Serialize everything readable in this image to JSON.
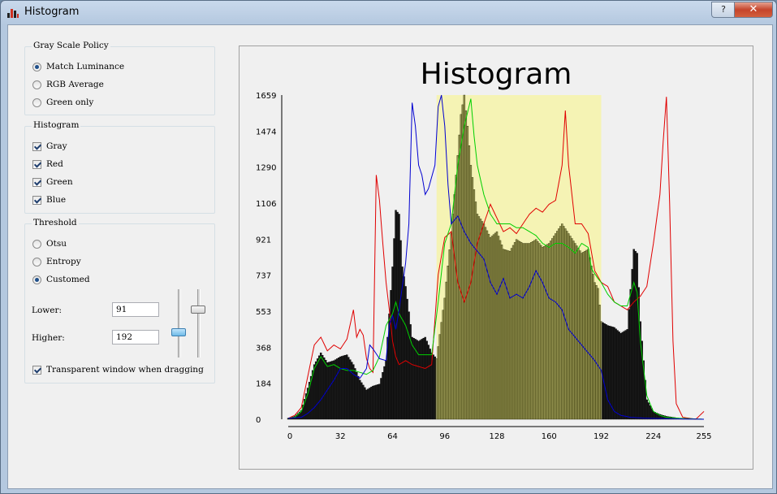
{
  "window": {
    "title": "Histogram",
    "help_label": "?",
    "close_label": "✕",
    "icon": "histogram-app-icon"
  },
  "gray_policy": {
    "title": "Gray Scale Policy",
    "options": [
      {
        "label": "Match Luminance",
        "selected": true
      },
      {
        "label": "RGB Average",
        "selected": false
      },
      {
        "label": "Green only",
        "selected": false
      }
    ]
  },
  "histogram_group": {
    "title": "Histogram",
    "options": [
      {
        "label": "Gray",
        "checked": true
      },
      {
        "label": "Red",
        "checked": true
      },
      {
        "label": "Green",
        "checked": true
      },
      {
        "label": "Blue",
        "checked": true
      }
    ]
  },
  "threshold": {
    "title": "Threshold",
    "options": [
      {
        "label": "Otsu",
        "selected": false
      },
      {
        "label": "Entropy",
        "selected": false
      },
      {
        "label": "Customed",
        "selected": true
      }
    ],
    "lower_label": "Lower:",
    "lower_value": "91",
    "higher_label": "Higher:",
    "higher_value": "192",
    "transparent_label": "Transparent window when dragging",
    "transparent_checked": true
  },
  "colors": {
    "highlight": "#f5f3b4",
    "gray_bars": "#1a1a1a",
    "red": "#e00000",
    "green": "#00d000",
    "blue": "#0000d0"
  },
  "chart_data": {
    "type": "bar",
    "title": "Histogram",
    "xlabel": "",
    "ylabel": "",
    "xlim": [
      0,
      255
    ],
    "ylim": [
      0,
      1659
    ],
    "x_ticks": [
      "0",
      "32",
      "64",
      "96",
      "128",
      "160",
      "192",
      "224",
      "255"
    ],
    "y_ticks": [
      "0",
      "184",
      "368",
      "553",
      "737",
      "921",
      "1106",
      "1290",
      "1474",
      "1659"
    ],
    "threshold_range": [
      91,
      192
    ],
    "series": [
      {
        "channel": "gray",
        "points": [
          [
            0,
            5
          ],
          [
            4,
            15
          ],
          [
            8,
            45
          ],
          [
            12,
            160
          ],
          [
            16,
            280
          ],
          [
            20,
            340
          ],
          [
            24,
            290
          ],
          [
            28,
            300
          ],
          [
            32,
            320
          ],
          [
            36,
            330
          ],
          [
            40,
            280
          ],
          [
            44,
            200
          ],
          [
            48,
            150
          ],
          [
            52,
            170
          ],
          [
            56,
            180
          ],
          [
            60,
            300
          ],
          [
            64,
            780
          ],
          [
            66,
            1070
          ],
          [
            68,
            1050
          ],
          [
            70,
            780
          ],
          [
            72,
            680
          ],
          [
            76,
            420
          ],
          [
            80,
            400
          ],
          [
            84,
            420
          ],
          [
            88,
            340
          ],
          [
            91,
            310
          ],
          [
            96,
            620
          ],
          [
            100,
            950
          ],
          [
            104,
            1350
          ],
          [
            106,
            1560
          ],
          [
            108,
            1659
          ],
          [
            110,
            1500
          ],
          [
            112,
            1300
          ],
          [
            116,
            1050
          ],
          [
            120,
            1000
          ],
          [
            124,
            930
          ],
          [
            128,
            960
          ],
          [
            132,
            870
          ],
          [
            136,
            860
          ],
          [
            140,
            920
          ],
          [
            144,
            900
          ],
          [
            148,
            900
          ],
          [
            152,
            920
          ],
          [
            156,
            880
          ],
          [
            160,
            900
          ],
          [
            164,
            950
          ],
          [
            168,
            1000
          ],
          [
            172,
            950
          ],
          [
            176,
            900
          ],
          [
            180,
            850
          ],
          [
            184,
            870
          ],
          [
            188,
            700
          ],
          [
            190,
            670
          ],
          [
            192,
            500
          ],
          [
            196,
            480
          ],
          [
            200,
            470
          ],
          [
            204,
            440
          ],
          [
            208,
            460
          ],
          [
            212,
            870
          ],
          [
            214,
            850
          ],
          [
            216,
            500
          ],
          [
            220,
            100
          ],
          [
            224,
            40
          ],
          [
            228,
            25
          ],
          [
            232,
            15
          ],
          [
            240,
            5
          ],
          [
            255,
            0
          ]
        ]
      },
      {
        "channel": "red",
        "points": [
          [
            0,
            5
          ],
          [
            4,
            20
          ],
          [
            8,
            60
          ],
          [
            12,
            220
          ],
          [
            16,
            380
          ],
          [
            20,
            420
          ],
          [
            24,
            350
          ],
          [
            28,
            380
          ],
          [
            32,
            360
          ],
          [
            36,
            410
          ],
          [
            40,
            560
          ],
          [
            42,
            420
          ],
          [
            44,
            460
          ],
          [
            46,
            430
          ],
          [
            48,
            310
          ],
          [
            50,
            260
          ],
          [
            52,
            240
          ],
          [
            54,
            1250
          ],
          [
            56,
            1120
          ],
          [
            58,
            900
          ],
          [
            60,
            700
          ],
          [
            62,
            560
          ],
          [
            64,
            400
          ],
          [
            66,
            320
          ],
          [
            68,
            280
          ],
          [
            72,
            300
          ],
          [
            76,
            280
          ],
          [
            80,
            270
          ],
          [
            84,
            260
          ],
          [
            88,
            280
          ],
          [
            92,
            740
          ],
          [
            96,
            930
          ],
          [
            100,
            960
          ],
          [
            104,
            700
          ],
          [
            108,
            600
          ],
          [
            112,
            700
          ],
          [
            116,
            900
          ],
          [
            120,
            1000
          ],
          [
            124,
            1100
          ],
          [
            128,
            1030
          ],
          [
            132,
            960
          ],
          [
            136,
            980
          ],
          [
            140,
            950
          ],
          [
            144,
            1000
          ],
          [
            148,
            1050
          ],
          [
            152,
            1080
          ],
          [
            156,
            1060
          ],
          [
            160,
            1100
          ],
          [
            164,
            1120
          ],
          [
            168,
            1300
          ],
          [
            170,
            1580
          ],
          [
            172,
            1300
          ],
          [
            176,
            1000
          ],
          [
            180,
            1000
          ],
          [
            184,
            950
          ],
          [
            188,
            760
          ],
          [
            192,
            700
          ],
          [
            196,
            680
          ],
          [
            200,
            600
          ],
          [
            204,
            580
          ],
          [
            208,
            560
          ],
          [
            212,
            600
          ],
          [
            216,
            630
          ],
          [
            220,
            680
          ],
          [
            224,
            900
          ],
          [
            228,
            1150
          ],
          [
            230,
            1420
          ],
          [
            232,
            1650
          ],
          [
            234,
            1100
          ],
          [
            236,
            400
          ],
          [
            238,
            80
          ],
          [
            242,
            10
          ],
          [
            250,
            0
          ],
          [
            255,
            40
          ]
        ]
      },
      {
        "channel": "green",
        "points": [
          [
            0,
            5
          ],
          [
            4,
            10
          ],
          [
            8,
            40
          ],
          [
            12,
            130
          ],
          [
            16,
            260
          ],
          [
            20,
            320
          ],
          [
            24,
            270
          ],
          [
            28,
            280
          ],
          [
            32,
            260
          ],
          [
            36,
            250
          ],
          [
            40,
            250
          ],
          [
            44,
            240
          ],
          [
            48,
            230
          ],
          [
            52,
            250
          ],
          [
            56,
            320
          ],
          [
            60,
            480
          ],
          [
            64,
            540
          ],
          [
            66,
            600
          ],
          [
            68,
            540
          ],
          [
            72,
            480
          ],
          [
            76,
            380
          ],
          [
            80,
            330
          ],
          [
            84,
            330
          ],
          [
            88,
            330
          ],
          [
            92,
            600
          ],
          [
            96,
            900
          ],
          [
            100,
            1000
          ],
          [
            104,
            1300
          ],
          [
            108,
            1500
          ],
          [
            112,
            1640
          ],
          [
            114,
            1450
          ],
          [
            116,
            1300
          ],
          [
            120,
            1150
          ],
          [
            124,
            1050
          ],
          [
            128,
            1000
          ],
          [
            132,
            1000
          ],
          [
            136,
            1000
          ],
          [
            140,
            980
          ],
          [
            144,
            980
          ],
          [
            148,
            960
          ],
          [
            152,
            940
          ],
          [
            156,
            900
          ],
          [
            160,
            880
          ],
          [
            164,
            900
          ],
          [
            168,
            900
          ],
          [
            172,
            880
          ],
          [
            176,
            850
          ],
          [
            180,
            900
          ],
          [
            184,
            880
          ],
          [
            186,
            770
          ],
          [
            190,
            720
          ],
          [
            192,
            700
          ],
          [
            196,
            640
          ],
          [
            200,
            600
          ],
          [
            204,
            580
          ],
          [
            208,
            580
          ],
          [
            212,
            700
          ],
          [
            214,
            650
          ],
          [
            216,
            400
          ],
          [
            220,
            120
          ],
          [
            224,
            40
          ],
          [
            228,
            20
          ],
          [
            232,
            10
          ],
          [
            240,
            5
          ],
          [
            255,
            0
          ]
        ]
      },
      {
        "channel": "blue",
        "points": [
          [
            0,
            5
          ],
          [
            8,
            10
          ],
          [
            12,
            30
          ],
          [
            16,
            60
          ],
          [
            20,
            100
          ],
          [
            24,
            150
          ],
          [
            28,
            200
          ],
          [
            32,
            260
          ],
          [
            36,
            260
          ],
          [
            40,
            230
          ],
          [
            44,
            210
          ],
          [
            48,
            260
          ],
          [
            50,
            380
          ],
          [
            52,
            360
          ],
          [
            56,
            310
          ],
          [
            60,
            300
          ],
          [
            62,
            480
          ],
          [
            64,
            530
          ],
          [
            66,
            460
          ],
          [
            68,
            560
          ],
          [
            70,
            680
          ],
          [
            72,
            800
          ],
          [
            74,
            1000
          ],
          [
            76,
            1620
          ],
          [
            78,
            1500
          ],
          [
            80,
            1300
          ],
          [
            82,
            1250
          ],
          [
            84,
            1150
          ],
          [
            86,
            1180
          ],
          [
            88,
            1240
          ],
          [
            90,
            1300
          ],
          [
            92,
            1600
          ],
          [
            94,
            1659
          ],
          [
            96,
            1500
          ],
          [
            98,
            1200
          ],
          [
            100,
            1000
          ],
          [
            104,
            1040
          ],
          [
            108,
            960
          ],
          [
            112,
            900
          ],
          [
            116,
            860
          ],
          [
            120,
            820
          ],
          [
            124,
            700
          ],
          [
            128,
            640
          ],
          [
            132,
            720
          ],
          [
            136,
            620
          ],
          [
            140,
            640
          ],
          [
            144,
            620
          ],
          [
            148,
            680
          ],
          [
            152,
            760
          ],
          [
            156,
            700
          ],
          [
            160,
            620
          ],
          [
            164,
            600
          ],
          [
            168,
            560
          ],
          [
            172,
            460
          ],
          [
            176,
            420
          ],
          [
            180,
            380
          ],
          [
            184,
            340
          ],
          [
            188,
            300
          ],
          [
            192,
            250
          ],
          [
            196,
            100
          ],
          [
            200,
            40
          ],
          [
            204,
            20
          ],
          [
            210,
            10
          ],
          [
            220,
            5
          ],
          [
            255,
            0
          ]
        ]
      }
    ]
  }
}
